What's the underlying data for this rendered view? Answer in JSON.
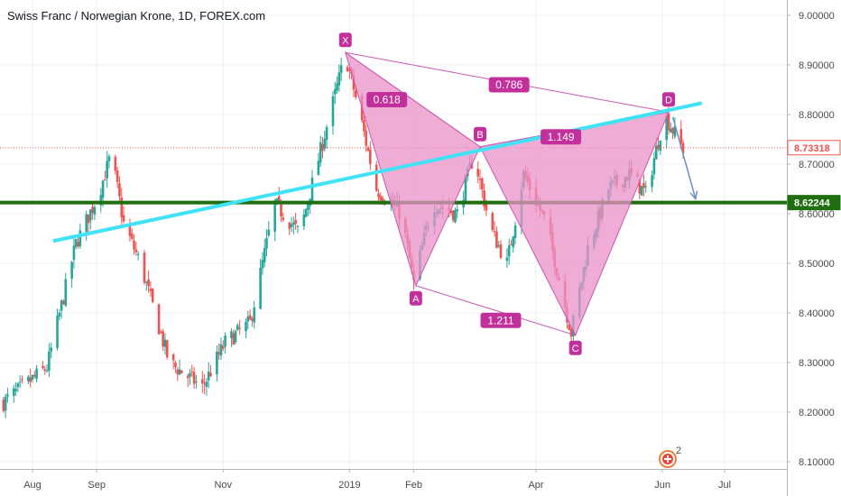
{
  "title": "Swiss Franc / Norwegian Krone, 1D, FOREX.com",
  "colors": {
    "up": "#26a69a",
    "down": "#ef5350",
    "pattern_fill": "#e991c8",
    "pattern_stroke": "#c45ab3",
    "label_bg": "#c2309b",
    "trendline": "#3fe3f5",
    "support": "#1f6e0f",
    "forecast_arrow": "#6f8fc7",
    "last_price_line": "#ef5350"
  },
  "chart_data": {
    "type": "candlestick",
    "title": "Swiss Franc / Norwegian Krone, 1D, FOREX.com",
    "xlabel": "",
    "ylabel": "",
    "ylim": [
      8.08,
      9.03
    ],
    "x_tick_labels": [
      "Aug",
      "Sep",
      "Nov",
      "2019",
      "Feb",
      "Apr",
      "Jun",
      "Jul"
    ],
    "x_tick_dates": [
      "2018-08-01",
      "2018-09-01",
      "2018-11-01",
      "2019-01-01",
      "2019-02-01",
      "2019-04-01",
      "2019-06-01",
      "2019-07-01"
    ],
    "y_ticks": [
      8.1,
      8.2,
      8.3,
      8.4,
      8.5,
      8.6,
      8.7,
      8.8,
      8.9,
      9.0
    ],
    "y_tick_labels": [
      "8.10000",
      "8.20000",
      "8.30000",
      "8.40000",
      "8.50000",
      "8.60000",
      "8.70000",
      "8.80000",
      "8.90000",
      "9.00000"
    ],
    "date_range": [
      "2018-07-18",
      "2019-06-11"
    ],
    "anchors": [
      {
        "date": "2018-07-18",
        "close": 8.22
      },
      {
        "date": "2018-08-08",
        "close": 8.29
      },
      {
        "date": "2018-08-22",
        "close": 8.54
      },
      {
        "date": "2018-09-02",
        "close": 8.64
      },
      {
        "date": "2018-09-08",
        "close": 8.72
      },
      {
        "date": "2018-09-14",
        "close": 8.58
      },
      {
        "date": "2018-09-22",
        "close": 8.5
      },
      {
        "date": "2018-10-06",
        "close": 8.3
      },
      {
        "date": "2018-10-22",
        "close": 8.25
      },
      {
        "date": "2018-11-02",
        "close": 8.34
      },
      {
        "date": "2018-11-14",
        "close": 8.38
      },
      {
        "date": "2018-11-26",
        "close": 8.62
      },
      {
        "date": "2018-12-08",
        "close": 8.56
      },
      {
        "date": "2018-12-20",
        "close": 8.76
      },
      {
        "date": "2018-12-30",
        "close": 8.92
      },
      {
        "date": "2019-01-06",
        "close": 8.8
      },
      {
        "date": "2019-01-14",
        "close": 8.65
      },
      {
        "date": "2019-01-26",
        "close": 8.6
      },
      {
        "date": "2019-02-01",
        "close": 8.46
      },
      {
        "date": "2019-02-10",
        "close": 8.62
      },
      {
        "date": "2019-02-22",
        "close": 8.6
      },
      {
        "date": "2019-03-02",
        "close": 8.72
      },
      {
        "date": "2019-03-10",
        "close": 8.57
      },
      {
        "date": "2019-03-18",
        "close": 8.5
      },
      {
        "date": "2019-03-26",
        "close": 8.68
      },
      {
        "date": "2019-04-06",
        "close": 8.58
      },
      {
        "date": "2019-04-18",
        "close": 8.36
      },
      {
        "date": "2019-04-26",
        "close": 8.53
      },
      {
        "date": "2019-05-06",
        "close": 8.65
      },
      {
        "date": "2019-05-16",
        "close": 8.68
      },
      {
        "date": "2019-05-24",
        "close": 8.64
      },
      {
        "date": "2019-06-02",
        "close": 8.8
      },
      {
        "date": "2019-06-11",
        "close": 8.73
      }
    ],
    "harmonic_pattern": {
      "points": [
        {
          "label": "X",
          "date": "2018-12-30",
          "price": 8.925
        },
        {
          "label": "A",
          "date": "2019-02-02",
          "price": 8.455
        },
        {
          "label": "B",
          "date": "2019-03-05",
          "price": 8.735
        },
        {
          "label": "C",
          "date": "2019-04-20",
          "price": 8.355
        },
        {
          "label": "D",
          "date": "2019-06-04",
          "price": 8.805
        }
      ],
      "ratios": [
        {
          "value": "0.618",
          "date": "2019-01-19",
          "price": 8.83
        },
        {
          "value": "0.786",
          "date": "2019-03-19",
          "price": 8.86
        },
        {
          "value": "1.149",
          "date": "2019-04-13",
          "price": 8.755
        },
        {
          "value": "1.211",
          "date": "2019-03-15",
          "price": 8.385
        }
      ]
    },
    "trendline": {
      "start": {
        "date": "2018-08-11",
        "price": 8.545
      },
      "end": {
        "date": "2019-06-20",
        "price": 8.823
      }
    },
    "support_level": 8.62244,
    "last_price": 8.73318,
    "price_tags": [
      "8.73318",
      "8.62244"
    ],
    "forecast_arrow": {
      "start": {
        "date": "2019-06-06",
        "price": 8.795
      },
      "end": {
        "date": "2019-06-17",
        "price": 8.63
      }
    }
  },
  "watermark": {
    "badge_number": "2"
  }
}
